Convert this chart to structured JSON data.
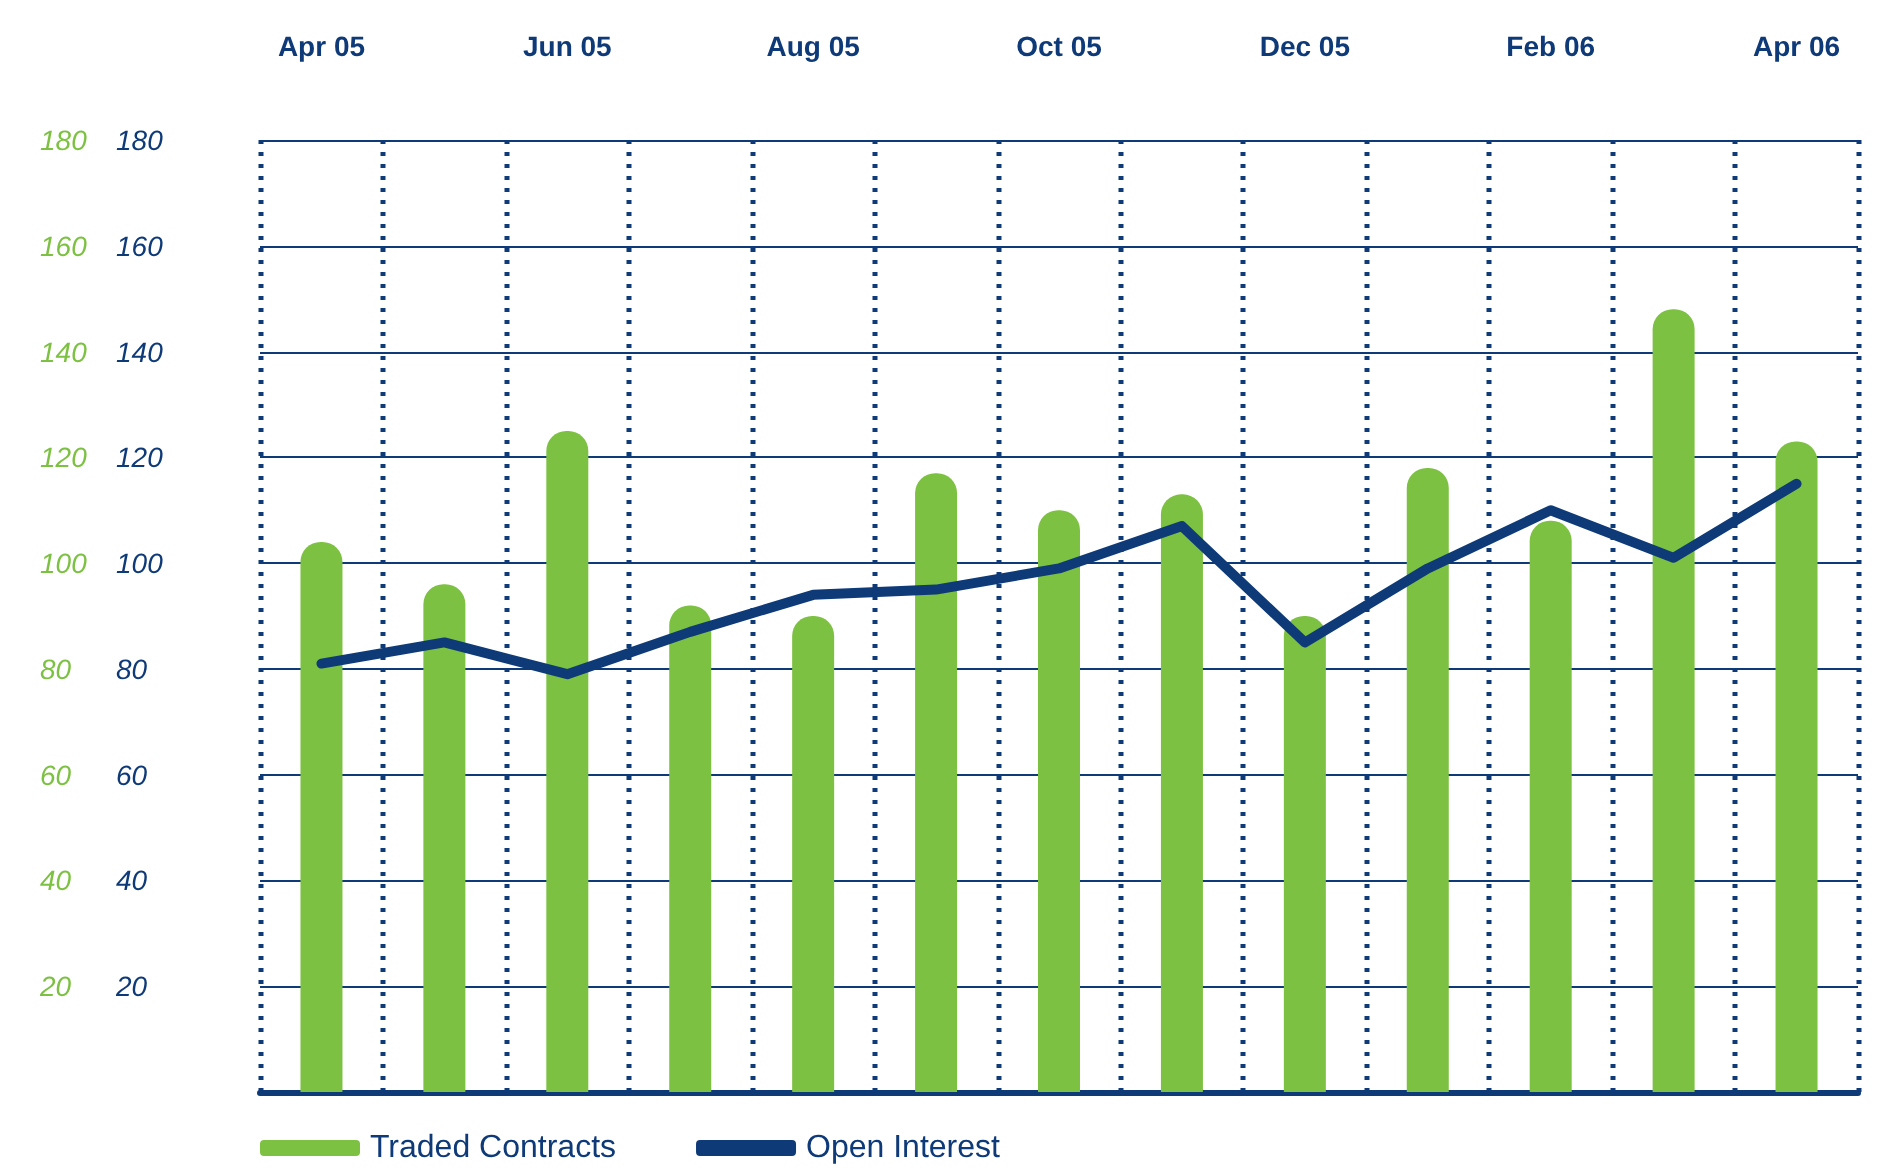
{
  "chart_data": {
    "type": "bar",
    "categories": [
      "Apr 05",
      null,
      "Jun 05",
      null,
      "Aug 05",
      null,
      "Oct 05",
      null,
      "Dec 05",
      null,
      "Feb 06",
      null,
      "Apr 06"
    ],
    "series": [
      {
        "name": "Traded Contracts",
        "color": "#7dc142",
        "values": [
          104,
          96,
          125,
          92,
          90,
          117,
          110,
          113,
          90,
          118,
          108,
          148,
          123
        ]
      },
      {
        "name": "Open Interest",
        "type": "line",
        "axis": "y2",
        "color": "#0e3a78",
        "values": [
          81,
          85,
          79,
          87,
          94,
          95,
          99,
          107,
          85,
          99,
          110,
          101,
          115
        ]
      }
    ],
    "ylim": [
      0,
      180
    ],
    "yticks": [
      20,
      40,
      60,
      80,
      100,
      120,
      140,
      160,
      180
    ],
    "y2lim": [
      0,
      180
    ],
    "y2ticks": [
      20,
      40,
      60,
      80,
      100,
      120,
      140,
      160,
      180
    ],
    "grid": true,
    "legend": "bottom left",
    "marker": "none",
    "line_style": "solid"
  }
}
